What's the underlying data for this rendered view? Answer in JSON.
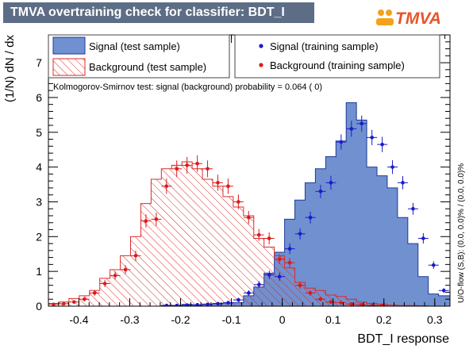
{
  "title": "TMVA overtraining check for classifier: BDT_I",
  "logo": "TMVA",
  "chart_data": {
    "type": "histogram",
    "xlabel": "BDT_I response",
    "ylabel": "(1/N) dN / dx",
    "xlim": [
      -0.46,
      0.33
    ],
    "ylim": [
      0,
      7.8
    ],
    "x_ticks": [
      -0.4,
      -0.3,
      -0.2,
      -0.1,
      0,
      0.1,
      0.2,
      0.3
    ],
    "x_tick_labels": [
      "-0.4",
      "-0.3",
      "-0.2",
      "-0.1",
      "0",
      "0.1",
      "0.2",
      "0.3"
    ],
    "y_ticks": [
      0,
      1,
      2,
      3,
      4,
      5,
      6,
      7
    ],
    "y_tick_labels": [
      "0",
      "1",
      "2",
      "3",
      "4",
      "5",
      "6",
      "7"
    ],
    "bin_edges": [
      -0.46,
      -0.4398,
      -0.4196,
      -0.3994,
      -0.3792,
      -0.359,
      -0.3388,
      -0.3186,
      -0.2984,
      -0.2782,
      -0.258,
      -0.2378,
      -0.2176,
      -0.1974,
      -0.1772,
      -0.157,
      -0.1368,
      -0.1166,
      -0.0964,
      -0.0762,
      -0.056,
      -0.0358,
      -0.0156,
      0.0046,
      0.0248,
      0.045,
      0.0652,
      0.0854,
      0.1056,
      0.1258,
      0.146,
      0.1662,
      0.1864,
      0.2066,
      0.2268,
      0.247,
      0.2672,
      0.2874,
      0.3076,
      0.33
    ],
    "annotation": "Kolmogorov-Smirnov test: signal (background) probability = 0.064 (    0)",
    "side_label": "U/O-flow (S,B): (0.0, 0.0)% / (0.0, 0.0)%",
    "legend_placement": "top",
    "series": [
      {
        "name": "Signal (test sample)",
        "style": "filled-histogram",
        "color": "#6f8fcf",
        "values": [
          0,
          0,
          0,
          0,
          0,
          0,
          0,
          0,
          0,
          0,
          0,
          0.02,
          0.02,
          0.05,
          0.03,
          0.06,
          0.08,
          0.09,
          0.1,
          0.3,
          0.55,
          0.95,
          1.55,
          2.5,
          3.05,
          3.55,
          3.95,
          4.3,
          4.75,
          5.85,
          5.35,
          4.0,
          3.75,
          3.4,
          2.55,
          1.8,
          0.85,
          0.35,
          0.3
        ]
      },
      {
        "name": "Background (test sample)",
        "style": "hatched-histogram",
        "color": "#dd2a2a",
        "values": [
          0.08,
          0.12,
          0.22,
          0.3,
          0.45,
          0.8,
          1.05,
          1.45,
          2.0,
          2.95,
          3.65,
          3.95,
          4.05,
          4.15,
          3.95,
          3.65,
          3.45,
          3.15,
          2.85,
          2.6,
          1.95,
          1.7,
          1.45,
          1.1,
          0.68,
          0.52,
          0.45,
          0.32,
          0.28,
          0.2,
          0.12,
          0.08,
          0.06,
          0.03,
          0.02,
          0.02,
          0.01,
          0,
          0
        ]
      },
      {
        "name": "Signal (training sample)",
        "style": "points",
        "color": "#1a1acc",
        "x": [
          -0.2275,
          -0.2073,
          -0.1871,
          -0.1669,
          -0.1467,
          -0.1265,
          -0.1063,
          -0.0861,
          -0.0659,
          -0.0457,
          -0.0255,
          -0.0053,
          0.0149,
          0.0351,
          0.0553,
          0.0755,
          0.0957,
          0.1159,
          0.1361,
          0.1563,
          0.1765,
          0.1967,
          0.2169,
          0.2371,
          0.2573,
          0.2775,
          0.2977,
          0.3179
        ],
        "values": [
          0.02,
          0.02,
          0.03,
          0.04,
          0.05,
          0.07,
          0.1,
          0.18,
          0.38,
          0.62,
          0.9,
          0.85,
          1.65,
          2.08,
          2.55,
          3.3,
          3.55,
          4.72,
          5.1,
          5.25,
          4.85,
          4.65,
          4.0,
          3.55,
          2.8,
          1.95,
          1.18,
          0.45
        ],
        "errors": [
          0.02,
          0.02,
          0.02,
          0.03,
          0.03,
          0.04,
          0.05,
          0.06,
          0.08,
          0.1,
          0.12,
          0.12,
          0.15,
          0.16,
          0.17,
          0.19,
          0.2,
          0.22,
          0.23,
          0.23,
          0.22,
          0.22,
          0.2,
          0.19,
          0.17,
          0.15,
          0.11,
          0.07
        ]
      },
      {
        "name": "Background (training sample)",
        "style": "points",
        "color": "#dd1a1a",
        "x": [
          -0.4499,
          -0.4297,
          -0.4095,
          -0.3893,
          -0.3691,
          -0.3489,
          -0.3287,
          -0.3085,
          -0.2883,
          -0.2681,
          -0.2479,
          -0.2277,
          -0.2075,
          -0.1873,
          -0.1671,
          -0.1469,
          -0.1267,
          -0.1065,
          -0.0863,
          -0.0661,
          -0.0459,
          -0.0257,
          -0.0055,
          0.0147,
          0.0349,
          0.0551,
          0.0753,
          0.0955,
          0.1157,
          0.1359,
          0.1561,
          0.1763,
          0.1965
        ],
        "values": [
          0.05,
          0.07,
          0.12,
          0.2,
          0.38,
          0.65,
          0.88,
          1.05,
          1.45,
          2.45,
          2.5,
          3.45,
          3.95,
          4.05,
          4.1,
          3.95,
          3.55,
          3.45,
          3.0,
          2.55,
          2.05,
          1.95,
          1.35,
          1.25,
          0.6,
          0.38,
          0.2,
          0.12,
          0.1,
          0.06,
          0.04,
          0.02,
          0.02
        ],
        "errors": [
          0.03,
          0.04,
          0.05,
          0.06,
          0.08,
          0.1,
          0.12,
          0.13,
          0.15,
          0.19,
          0.19,
          0.22,
          0.24,
          0.24,
          0.24,
          0.24,
          0.23,
          0.22,
          0.21,
          0.19,
          0.17,
          0.17,
          0.14,
          0.14,
          0.1,
          0.08,
          0.06,
          0.05,
          0.04,
          0.03,
          0.03,
          0.02,
          0.02
        ]
      }
    ]
  }
}
